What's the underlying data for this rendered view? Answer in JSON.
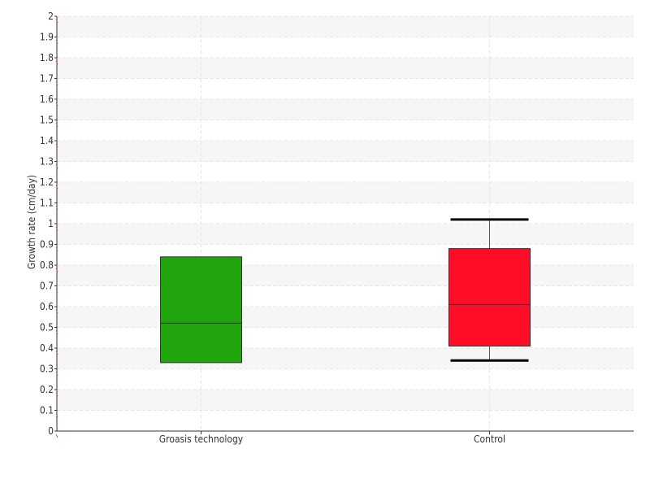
{
  "chart_data": {
    "type": "box",
    "title": "",
    "xlabel": "",
    "ylabel": "Growth rate (cm/day)",
    "ylim": [
      0,
      2
    ],
    "yticks": [
      "0",
      "0.1",
      "0.2",
      "0.3",
      "0.4",
      "0.5",
      "0.6",
      "0.7",
      "0.8",
      "0.9",
      "1",
      "1.1",
      "1.2",
      "1.3",
      "1.4",
      "1.5",
      "1.6",
      "1.7",
      "1.8",
      "1.9",
      "2"
    ],
    "grid": true,
    "categories": [
      "Groasis technology",
      "Control"
    ],
    "boxes": [
      {
        "category": "Groasis technology",
        "min": 0.33,
        "q1": 0.33,
        "median": 0.52,
        "q3": 0.84,
        "max": 0.84,
        "color": "#21a50e"
      },
      {
        "category": "Control",
        "min": 0.34,
        "q1": 0.41,
        "median": 0.61,
        "q3": 0.88,
        "max": 1.02,
        "color": "#ff0c27"
      }
    ]
  }
}
